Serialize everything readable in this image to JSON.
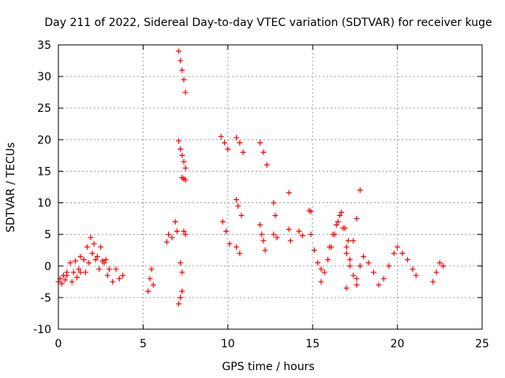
{
  "chart_data": {
    "type": "scatter",
    "title": "Day 211 of 2022, Sidereal Day-to-day VTEC variation (SDTVAR) for receiver kuge",
    "xlabel": "GPS time / hours",
    "ylabel": "SDTVAR / TECUs",
    "xlim": [
      0,
      25
    ],
    "ylim": [
      -10,
      35
    ],
    "x_ticks": [
      0,
      5,
      10,
      15,
      20,
      25
    ],
    "y_ticks": [
      -10,
      -5,
      0,
      5,
      10,
      15,
      20,
      25,
      30,
      35
    ],
    "x_tick_labels": [
      "0",
      "5",
      "10",
      "15",
      "20",
      "25"
    ],
    "y_tick_labels": [
      "-10",
      "-5",
      "0",
      "5",
      "10",
      "15",
      "20",
      "25",
      "30",
      "35"
    ],
    "grid": true,
    "marker": "+",
    "color": "#ff0000",
    "segments": [
      {
        "x": [
          0.0,
          0.1,
          0.2,
          0.3,
          0.4,
          0.5
        ],
        "y": [
          -2.5,
          -2.0,
          -2.8,
          -1.5,
          -2.2,
          -1.0
        ]
      },
      {
        "x": [
          0.5,
          0.7,
          0.8,
          0.9,
          1.0,
          1.1,
          1.2,
          1.3
        ],
        "y": [
          -1.5,
          0.5,
          -2.5,
          -1.0,
          0.8,
          -1.8,
          -0.5,
          1.5
        ]
      },
      {
        "x": [
          1.3,
          1.5,
          1.7,
          1.9,
          2.1,
          2.3,
          2.5,
          2.7,
          2.9
        ],
        "y": [
          -1.0,
          1.0,
          3.0,
          4.5,
          3.5,
          1.5,
          3.0,
          0.5,
          -1.5
        ]
      },
      {
        "x": [
          1.6,
          1.8,
          2.0,
          2.2,
          2.4,
          2.6
        ],
        "y": [
          -1.0,
          0.5,
          2.0,
          1.0,
          -0.5,
          0.8
        ]
      },
      {
        "x": [
          2.8,
          3.0,
          3.2,
          3.4,
          3.6,
          3.8
        ],
        "y": [
          1.0,
          -0.5,
          -2.5,
          -0.5,
          -2.0,
          -1.5
        ]
      },
      {
        "x": [
          5.3,
          5.4,
          5.5,
          5.6
        ],
        "y": [
          -4.0,
          -2.0,
          -0.5,
          -3.0
        ]
      },
      {
        "x": [
          6.4,
          6.5
        ],
        "y": [
          3.8,
          5.0
        ]
      },
      {
        "x": [
          6.7,
          6.9,
          7.0
        ],
        "y": [
          4.5,
          7.0,
          5.5
        ]
      },
      {
        "x": [
          7.1,
          7.2,
          7.3,
          7.4,
          7.5
        ],
        "y": [
          34.0,
          32.5,
          31.0,
          29.5,
          27.5
        ]
      },
      {
        "x": [
          7.1,
          7.2,
          7.3,
          7.4,
          7.5
        ],
        "y": [
          19.8,
          18.5,
          17.5,
          16.5,
          15.5
        ]
      },
      {
        "x": [
          7.3,
          7.4,
          7.5
        ],
        "y": [
          14.0,
          13.8,
          13.6
        ]
      },
      {
        "x": [
          7.2,
          7.3
        ],
        "y": [
          0.5,
          -1.0
        ]
      },
      {
        "x": [
          7.1,
          7.2,
          7.3
        ],
        "y": [
          -6.0,
          -5.0,
          -4.0
        ]
      },
      {
        "x": [
          7.4,
          7.5
        ],
        "y": [
          5.5,
          5.0
        ]
      },
      {
        "x": [
          9.6,
          9.8,
          10.0
        ],
        "y": [
          20.5,
          19.5,
          18.5
        ]
      },
      {
        "x": [
          9.7,
          9.9,
          10.1
        ],
        "y": [
          7.0,
          5.5,
          3.5
        ]
      },
      {
        "x": [
          10.5,
          10.7,
          10.9
        ],
        "y": [
          20.3,
          19.5,
          18.0
        ]
      },
      {
        "x": [
          10.5,
          10.6,
          10.8
        ],
        "y": [
          10.5,
          9.5,
          8.0
        ]
      },
      {
        "x": [
          10.5,
          10.7
        ],
        "y": [
          3.0,
          2.0
        ]
      },
      {
        "x": [
          11.9,
          12.1,
          12.3
        ],
        "y": [
          19.5,
          18.0,
          16.0
        ]
      },
      {
        "x": [
          11.9,
          12.0,
          12.1,
          12.2
        ],
        "y": [
          6.5,
          5.0,
          4.0,
          2.5
        ]
      },
      {
        "x": [
          12.7,
          12.8
        ],
        "y": [
          10.0,
          8.0
        ]
      },
      {
        "x": [
          12.7,
          12.9
        ],
        "y": [
          5.0,
          4.5
        ]
      },
      {
        "x": [
          13.6
        ],
        "y": [
          11.6
        ]
      },
      {
        "x": [
          13.6,
          13.7
        ],
        "y": [
          5.8,
          4.0
        ]
      },
      {
        "x": [
          14.2,
          14.4
        ],
        "y": [
          5.5,
          4.8
        ]
      },
      {
        "x": [
          14.8,
          14.9
        ],
        "y": [
          8.8,
          8.6
        ]
      },
      {
        "x": [
          14.9,
          15.1,
          15.3,
          15.5
        ],
        "y": [
          5.0,
          2.5,
          0.5,
          -0.5
        ]
      },
      {
        "x": [
          15.5,
          15.7,
          15.9,
          16.1,
          16.3,
          16.5,
          16.7,
          16.9,
          17.1
        ],
        "y": [
          -2.5,
          -1.0,
          1.0,
          3.0,
          5.0,
          7.0,
          8.5,
          6.0,
          4.0
        ]
      },
      {
        "x": [
          16.0,
          16.2,
          16.4,
          16.6,
          16.8,
          17.0
        ],
        "y": [
          3.0,
          5.0,
          6.5,
          8.0,
          6.0,
          3.0
        ]
      },
      {
        "x": [
          17.0,
          17.2,
          17.4,
          17.6,
          17.8
        ],
        "y": [
          -3.5,
          0.0,
          4.0,
          7.5,
          12.0
        ]
      },
      {
        "x": [
          17.0,
          17.2,
          17.4,
          17.6
        ],
        "y": [
          2.0,
          1.0,
          -1.5,
          -3.0
        ]
      },
      {
        "x": [
          17.6,
          17.8,
          18.0,
          18.3,
          18.6,
          18.9,
          19.2,
          19.5,
          19.8,
          20.0,
          20.3,
          20.6,
          20.9,
          21.1
        ],
        "y": [
          -2.0,
          0.0,
          1.5,
          0.5,
          -1.0,
          -3.0,
          -2.0,
          0.0,
          2.0,
          3.0,
          2.0,
          1.0,
          -0.5,
          -1.5
        ]
      },
      {
        "x": [
          22.1,
          22.3,
          22.5,
          22.7
        ],
        "y": [
          -2.5,
          -1.0,
          0.5,
          0.0
        ]
      }
    ]
  }
}
